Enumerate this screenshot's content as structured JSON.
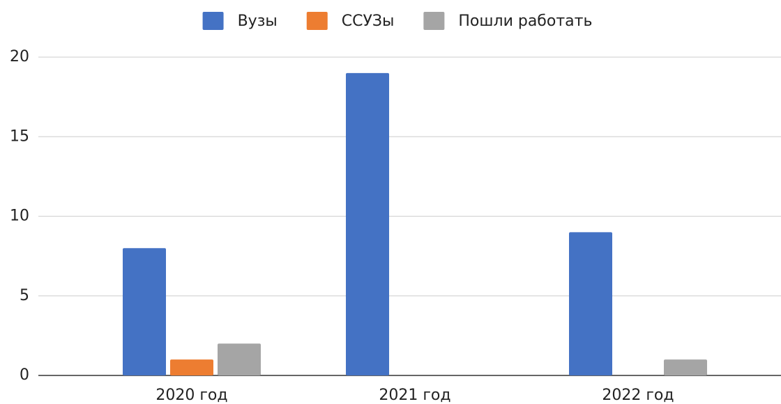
{
  "chart_data": {
    "type": "bar",
    "categories": [
      "2020 год",
      "2021 год",
      "2022 год"
    ],
    "series": [
      {
        "name": "Вузы",
        "color": "#4472c4",
        "values": [
          8,
          19,
          9
        ]
      },
      {
        "name": "ССУЗы",
        "color": "#ed7d31",
        "values": [
          1,
          0,
          0
        ]
      },
      {
        "name": "Пошли работать",
        "color": "#a5a5a5",
        "values": [
          2,
          0,
          1
        ]
      }
    ],
    "ylim": [
      0,
      20
    ],
    "yticks": [
      0,
      5,
      10,
      15,
      20
    ],
    "grid": true,
    "legend": "top"
  }
}
